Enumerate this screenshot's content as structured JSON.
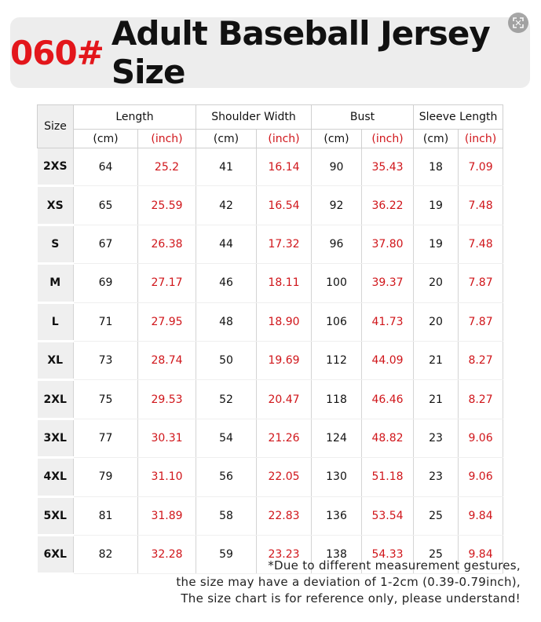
{
  "title": {
    "code": "060#",
    "text": "Adult Baseball Jersey Size"
  },
  "table": {
    "size_header": "Size",
    "groups": [
      "Length",
      "Shoulder Width",
      "Bust",
      "Sleeve Length"
    ],
    "unit_cm": "(cm)",
    "unit_inch": "(inch)",
    "rows": [
      {
        "size": "2XS",
        "values": [
          "64",
          "25.2",
          "41",
          "16.14",
          "90",
          "35.43",
          "18",
          "7.09"
        ]
      },
      {
        "size": "XS",
        "values": [
          "65",
          "25.59",
          "42",
          "16.54",
          "92",
          "36.22",
          "19",
          "7.48"
        ]
      },
      {
        "size": "S",
        "values": [
          "67",
          "26.38",
          "44",
          "17.32",
          "96",
          "37.80",
          "19",
          "7.48"
        ]
      },
      {
        "size": "M",
        "values": [
          "69",
          "27.17",
          "46",
          "18.11",
          "100",
          "39.37",
          "20",
          "7.87"
        ]
      },
      {
        "size": "L",
        "values": [
          "71",
          "27.95",
          "48",
          "18.90",
          "106",
          "41.73",
          "20",
          "7.87"
        ]
      },
      {
        "size": "XL",
        "values": [
          "73",
          "28.74",
          "50",
          "19.69",
          "112",
          "44.09",
          "21",
          "8.27"
        ]
      },
      {
        "size": "2XL",
        "values": [
          "75",
          "29.53",
          "52",
          "20.47",
          "118",
          "46.46",
          "21",
          "8.27"
        ]
      },
      {
        "size": "3XL",
        "values": [
          "77",
          "30.31",
          "54",
          "21.26",
          "124",
          "48.82",
          "23",
          "9.06"
        ]
      },
      {
        "size": "4XL",
        "values": [
          "79",
          "31.10",
          "56",
          "22.05",
          "130",
          "51.18",
          "23",
          "9.06"
        ]
      },
      {
        "size": "5XL",
        "values": [
          "81",
          "31.89",
          "58",
          "22.83",
          "136",
          "53.54",
          "25",
          "9.84"
        ]
      },
      {
        "size": "6XL",
        "values": [
          "82",
          "32.28",
          "59",
          "23.23",
          "138",
          "54.33",
          "25",
          "9.84"
        ]
      }
    ]
  },
  "note": {
    "line1": "*Due to different measurement gestures,",
    "line2": "the size may have a deviation of 1-2cm (0.39-0.79inch),",
    "line3": "The size chart is for reference only, please understand!"
  },
  "colors": {
    "accent_red": "#e3161b",
    "banner_bg": "#ededed",
    "size_cell_bg": "#efefef"
  },
  "icons": {
    "expand": "expand-icon"
  }
}
